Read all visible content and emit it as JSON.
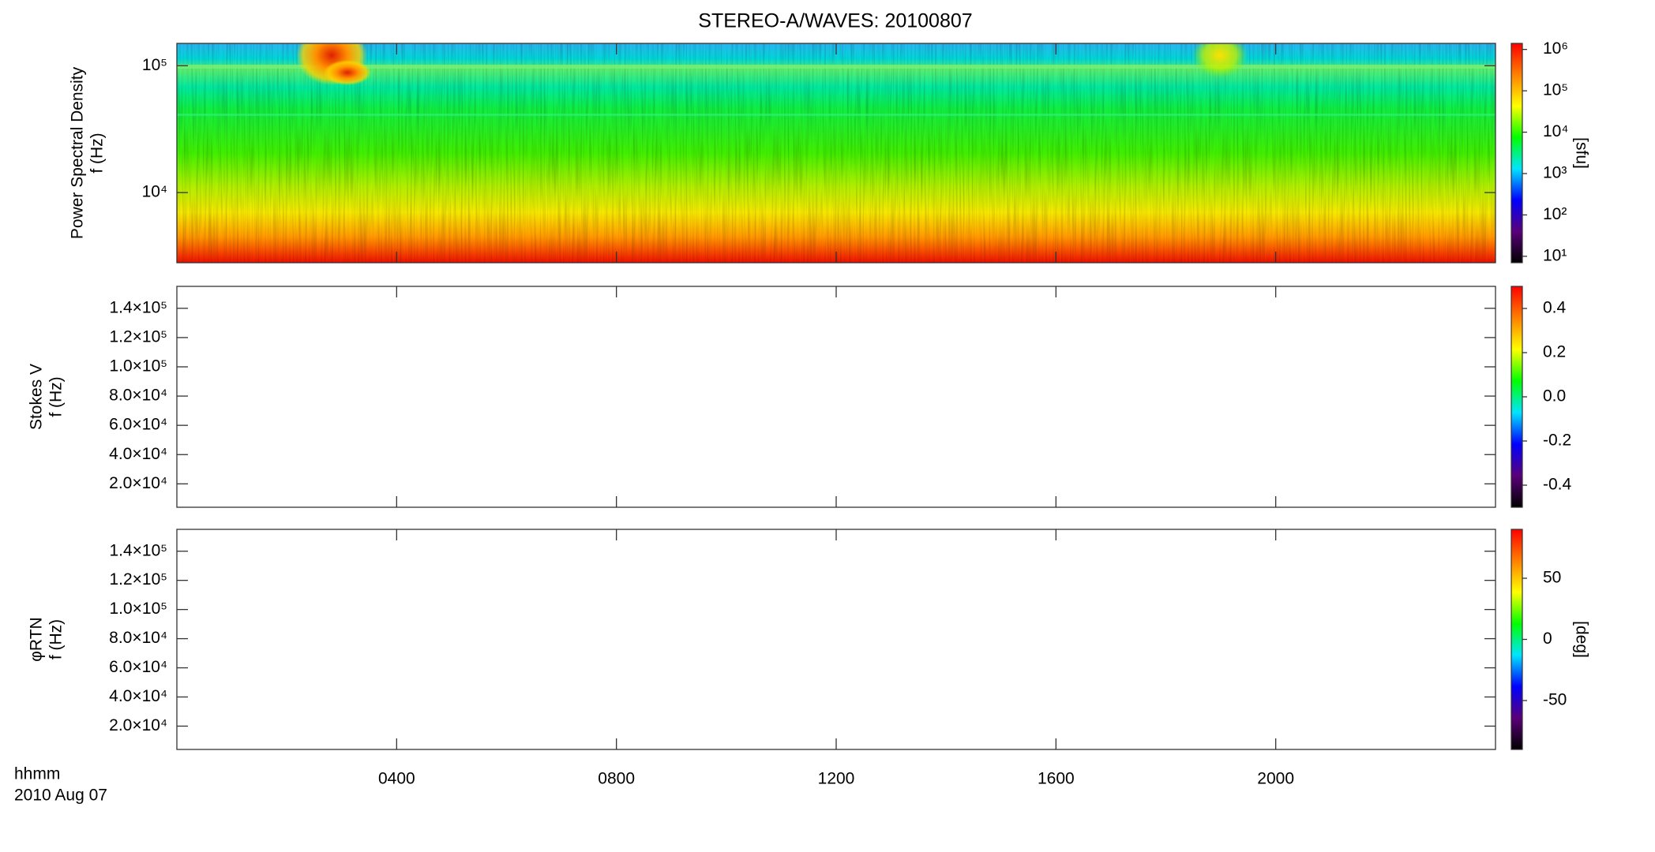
{
  "title": "STEREO-A/WAVES: 20100807",
  "colormap": [
    "#000000",
    "#5a007a",
    "#0000ff",
    "#00e5ff",
    "#00ff00",
    "#ffff00",
    "#ff8000",
    "#ff0000"
  ],
  "chart_data": [
    {
      "type": "heatmap",
      "ylabel": [
        "Power Spectral Density",
        "f (Hz)"
      ],
      "yscale": "log",
      "ylim": [
        2800,
        150000
      ],
      "yticks": [
        {
          "value": 10000,
          "label": "10⁴"
        },
        {
          "value": 100000,
          "label": "10⁵"
        }
      ],
      "xlim": [
        0,
        24
      ],
      "colorbar": {
        "scale": "log",
        "lim": [
          7,
          1400000
        ],
        "ticks": [
          {
            "value": 10,
            "label": "10¹"
          },
          {
            "value": 100,
            "label": "10²"
          },
          {
            "value": 1000,
            "label": "10³"
          },
          {
            "value": 10000,
            "label": "10⁴"
          },
          {
            "value": 100000,
            "label": "10⁵"
          },
          {
            "value": 1000000,
            "label": "10⁶"
          }
        ],
        "label": "[sfu]"
      }
    },
    {
      "type": "heatmap",
      "ylabel": [
        "Stokes V",
        "f (Hz)"
      ],
      "yscale": "linear",
      "ylim": [
        4000,
        155000
      ],
      "yticks": [
        {
          "value": 20000,
          "label": "2.0×10⁴"
        },
        {
          "value": 40000,
          "label": "4.0×10⁴"
        },
        {
          "value": 60000,
          "label": "6.0×10⁴"
        },
        {
          "value": 80000,
          "label": "8.0×10⁴"
        },
        {
          "value": 100000,
          "label": "1.0×10⁵"
        },
        {
          "value": 120000,
          "label": "1.2×10⁵"
        },
        {
          "value": 140000,
          "label": "1.4×10⁵"
        }
      ],
      "xlim": [
        0,
        24
      ],
      "colorbar": {
        "scale": "linear",
        "lim": [
          -0.5,
          0.5
        ],
        "ticks": [
          -0.4,
          -0.2,
          {
            "value": 0,
            "label": "0.0"
          },
          0.2,
          0.4
        ]
      }
    },
    {
      "type": "heatmap",
      "ylabel": [
        "φRTN",
        "f (Hz)"
      ],
      "yscale": "linear",
      "ylim": [
        4000,
        155000
      ],
      "yticks": [
        {
          "value": 20000,
          "label": "2.0×10⁴"
        },
        {
          "value": 40000,
          "label": "4.0×10⁴"
        },
        {
          "value": 60000,
          "label": "6.0×10⁴"
        },
        {
          "value": 80000,
          "label": "8.0×10⁴"
        },
        {
          "value": 100000,
          "label": "1.0×10⁵"
        },
        {
          "value": 120000,
          "label": "1.2×10⁵"
        },
        {
          "value": 140000,
          "label": "1.4×10⁵"
        }
      ],
      "xlim": [
        0,
        24
      ],
      "xticks": [
        {
          "value": 4,
          "label": "0400"
        },
        {
          "value": 8,
          "label": "0800"
        },
        {
          "value": 12,
          "label": "1200"
        },
        {
          "value": 16,
          "label": "1600"
        },
        {
          "value": 20,
          "label": "2000"
        }
      ],
      "xlabel": [
        "hhmm",
        "2010 Aug 07"
      ],
      "colorbar": {
        "scale": "linear",
        "lim": [
          -90,
          90
        ],
        "ticks": [
          -50,
          0,
          50
        ],
        "label": "[deg]"
      }
    }
  ]
}
